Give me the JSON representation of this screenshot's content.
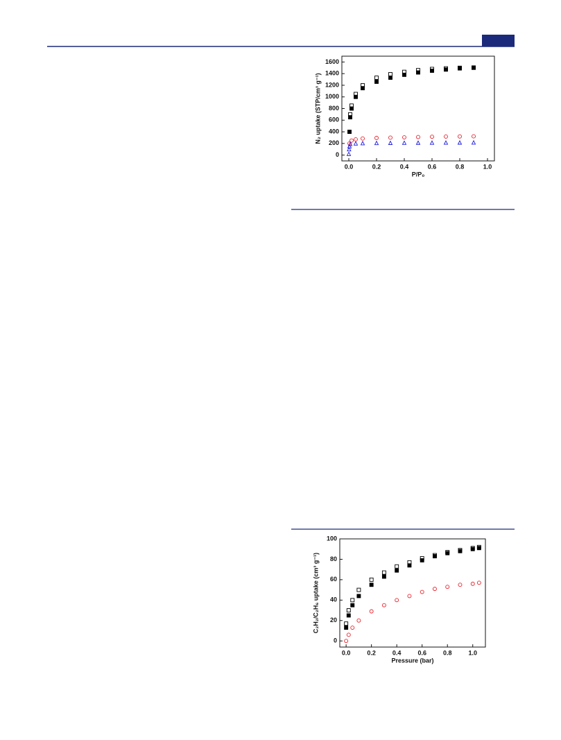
{
  "chart_data": [
    {
      "type": "scatter",
      "xlabel": "P/P₀",
      "ylabel": "N₂ uptake (STP/cm³ g⁻¹)",
      "xlim": [
        -0.05,
        1.05
      ],
      "ylim": [
        -100,
        1700
      ],
      "xticks": [
        {
          "value": 0,
          "label": "0.0"
        },
        0.2,
        0.4,
        0.6,
        0.8,
        {
          "value": 1,
          "label": "1.0"
        }
      ],
      "yticks": [
        0,
        200,
        400,
        600,
        800,
        1000,
        1200,
        1400,
        1600
      ],
      "series": [
        {
          "color": "#000000",
          "marker": "square-open",
          "x": [
            0.01,
            0.02,
            0.05,
            0.1,
            0.2,
            0.3,
            0.4,
            0.5,
            0.6,
            0.7,
            0.8,
            0.9
          ],
          "values": [
            700,
            850,
            1050,
            1200,
            1330,
            1390,
            1430,
            1460,
            1480,
            1490,
            1500,
            1505
          ]
        },
        {
          "color": "#000000",
          "marker": "square",
          "x": [
            0.005,
            0.01,
            0.02,
            0.05,
            0.1,
            0.2,
            0.3,
            0.4,
            0.5,
            0.6,
            0.7,
            0.8,
            0.9
          ],
          "values": [
            400,
            650,
            800,
            1000,
            1150,
            1260,
            1330,
            1380,
            1420,
            1450,
            1470,
            1490,
            1500
          ]
        },
        {
          "color": "#e8202a",
          "marker": "circle-open",
          "x": [
            0.005,
            0.02,
            0.05,
            0.1,
            0.2,
            0.3,
            0.4,
            0.5,
            0.6,
            0.7,
            0.8,
            0.9
          ],
          "values": [
            200,
            250,
            270,
            285,
            295,
            300,
            305,
            310,
            315,
            318,
            320,
            322
          ]
        },
        {
          "color": "#1a1ae0",
          "marker": "triangle-open",
          "x": [
            0,
            0.002,
            0.005,
            0.01,
            0.05,
            0.1,
            0.2,
            0.3,
            0.4,
            0.5,
            0.6,
            0.7,
            0.8,
            0.9
          ],
          "values": [
            20,
            100,
            150,
            190,
            200,
            205,
            208,
            210,
            212,
            213,
            214,
            215,
            216,
            217
          ]
        }
      ]
    },
    {
      "type": "scatter",
      "xlabel": "Pressure (bar)",
      "ylabel": "C₂H₂/C₂H₆ uptake (cm³ g⁻¹)",
      "xlim": [
        -0.05,
        1.1
      ],
      "ylim": [
        -6,
        100
      ],
      "xticks": [
        {
          "value": 0,
          "label": "0.0"
        },
        0.2,
        0.4,
        0.6,
        0.8,
        {
          "value": 1,
          "label": "1.0"
        }
      ],
      "yticks": [
        0,
        20,
        40,
        60,
        80,
        100
      ],
      "series": [
        {
          "color": "#000000",
          "marker": "square-open",
          "x": [
            0,
            0.02,
            0.05,
            0.1,
            0.2,
            0.3,
            0.4,
            0.5,
            0.6,
            0.7,
            0.8,
            0.9,
            1,
            1.05
          ],
          "values": [
            17,
            30,
            40,
            50,
            60,
            67,
            73,
            77,
            81,
            84,
            87,
            89,
            91,
            92
          ]
        },
        {
          "color": "#000000",
          "marker": "square",
          "x": [
            0,
            0.02,
            0.05,
            0.1,
            0.2,
            0.3,
            0.4,
            0.5,
            0.6,
            0.7,
            0.8,
            0.9,
            1,
            1.05
          ],
          "values": [
            13,
            25,
            35,
            44,
            55,
            63,
            69,
            74,
            79,
            83,
            86,
            88,
            90,
            91
          ]
        },
        {
          "color": "#e8202a",
          "marker": "circle-open",
          "x": [
            0,
            0.02,
            0.05,
            0.1,
            0.2,
            0.3,
            0.4,
            0.5,
            0.6,
            0.7,
            0.8,
            0.9,
            1,
            1.05
          ],
          "values": [
            0,
            6,
            13,
            20,
            29,
            35,
            40,
            44,
            48,
            51,
            53,
            55,
            56,
            57
          ]
        }
      ]
    }
  ]
}
